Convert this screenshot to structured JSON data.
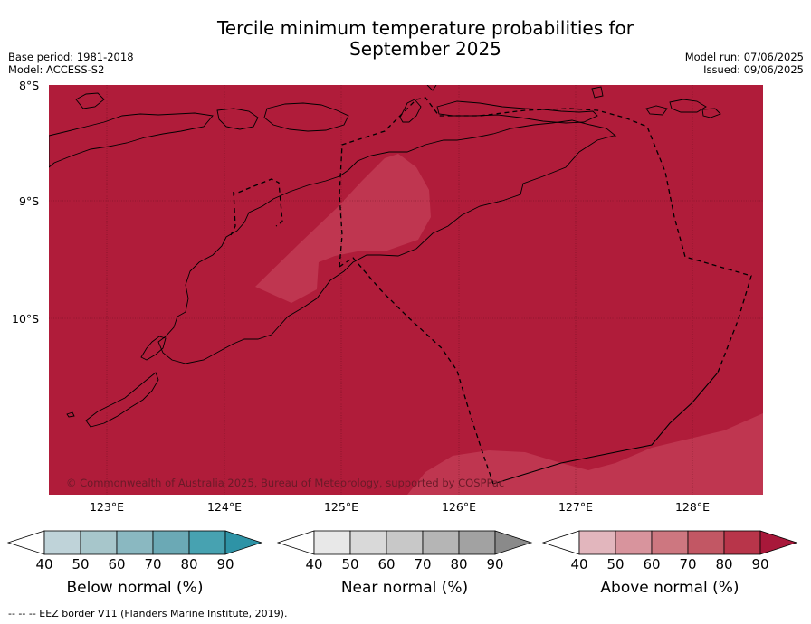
{
  "title": {
    "line1": "Tercile minimum temperature probabilities for",
    "line2": "September 2025"
  },
  "meta": {
    "base_period": "Base period: 1981-2018",
    "model": "Model: ACCESS-S2",
    "model_run": "Model run: 07/06/2025",
    "issued": "Issued: 09/06/2025"
  },
  "map": {
    "latitude_labels": [
      "8°S",
      "9°S",
      "10°S"
    ],
    "longitude_labels": [
      "123°E",
      "124°E",
      "125°E",
      "126°E",
      "127°E",
      "128°E"
    ],
    "copyright": "© Commonwealth of Australia 2025, Bureau of Meteorology, supported by COSPPac",
    "colors": {
      "above_90": "#b01c3a",
      "above_80": "#bf3650",
      "land_outline": "#000000"
    }
  },
  "colorbars": [
    {
      "title": "Below normal (%)",
      "ticks": [
        "40",
        "50",
        "60",
        "70",
        "80",
        "90"
      ],
      "colors": [
        "#bfd3d9",
        "#a7c6cb",
        "#8ab8c1",
        "#6ba9b5",
        "#47a2b1",
        "#2e93a6"
      ]
    },
    {
      "title": "Near normal (%)",
      "ticks": [
        "40",
        "50",
        "60",
        "70",
        "80",
        "90"
      ],
      "colors": [
        "#e8e8e8",
        "#d9d9d9",
        "#c8c8c8",
        "#b5b5b5",
        "#a2a2a2",
        "#8a8a8a"
      ]
    },
    {
      "title": "Above normal (%)",
      "ticks": [
        "40",
        "50",
        "60",
        "70",
        "80",
        "90"
      ],
      "colors": [
        "#e2b6bd",
        "#d8949d",
        "#cd7780",
        "#c25764",
        "#b8354a",
        "#a8183a"
      ]
    }
  ],
  "footer": {
    "legend": "--  --  -- EEZ border V11 (Flanders Marine Institute, 2019)."
  }
}
